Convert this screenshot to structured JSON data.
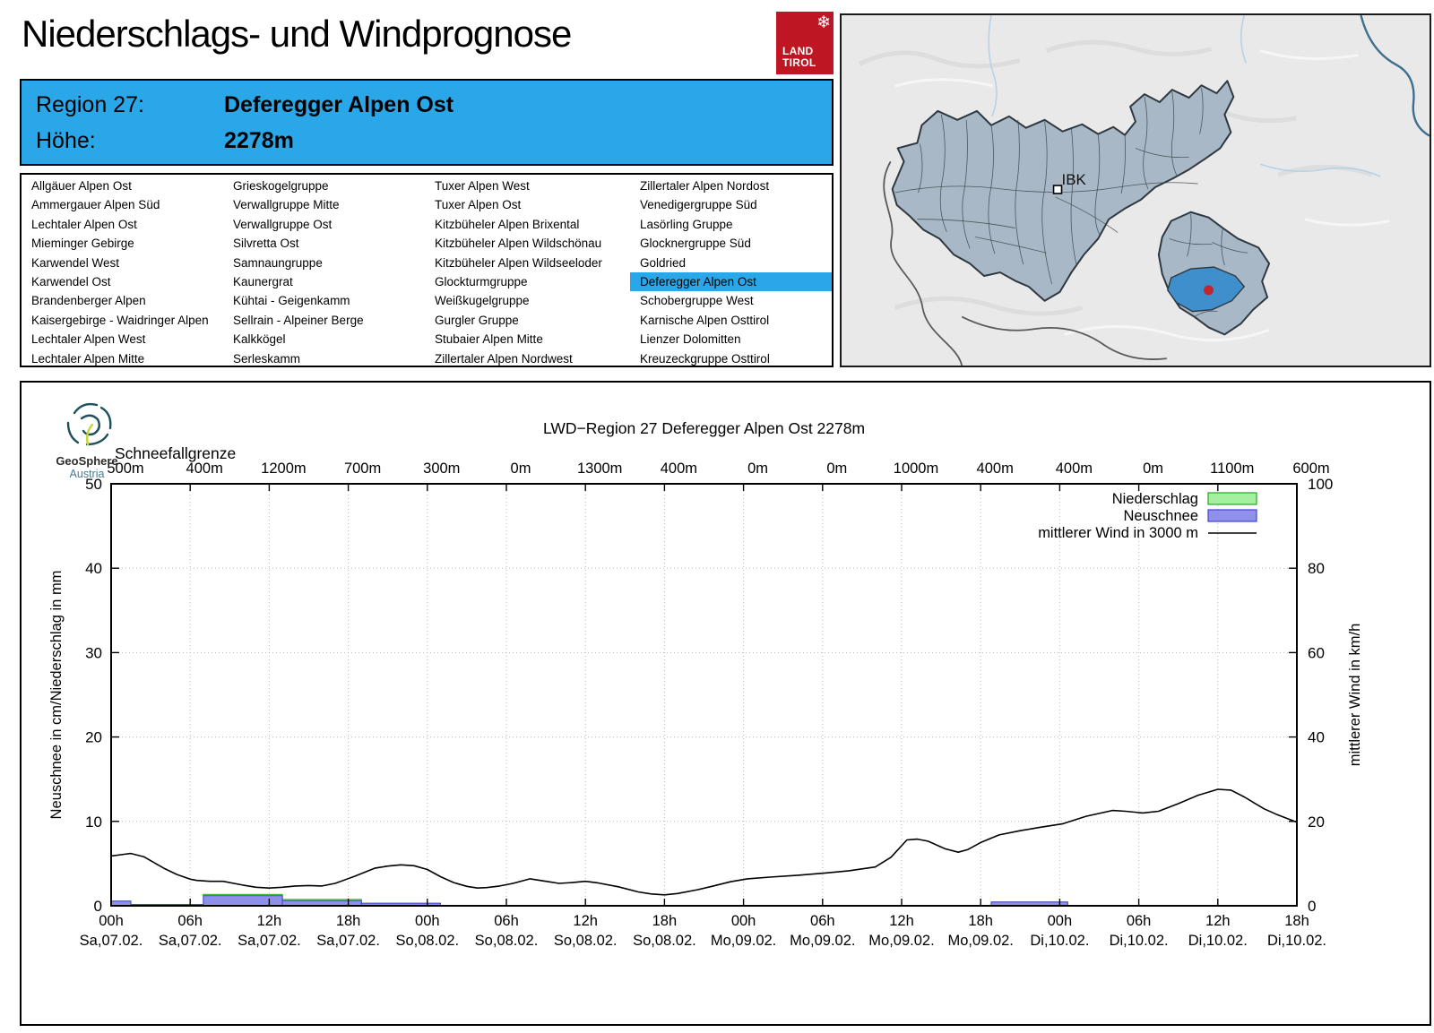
{
  "header": {
    "title": "Niederschlags- und Windprognose",
    "logo": {
      "snowflake": "❄",
      "text": "LAND\nTIROL"
    }
  },
  "region_info": {
    "region_label": "Region 27:",
    "region_name": "Deferegger Alpen Ost",
    "altitude_label": "Höhe:",
    "altitude": "2278m"
  },
  "region_list": {
    "selected": "Deferegger Alpen Ost",
    "columns": [
      [
        "Allgäuer Alpen Ost",
        "Ammergauer Alpen Süd",
        "Lechtaler Alpen Ost",
        "Mieminger Gebirge",
        "Karwendel West",
        "Karwendel Ost",
        "Brandenberger Alpen",
        "Kaisergebirge - Waidringer Alpen",
        "Lechtaler Alpen West",
        "Lechtaler Alpen Mitte"
      ],
      [
        "Grieskogelgruppe",
        "Verwallgruppe Mitte",
        "Verwallgruppe Ost",
        "Silvretta Ost",
        "Samnaungruppe",
        "Kaunergrat",
        "Kühtai - Geigenkamm",
        "Sellrain - Alpeiner Berge",
        "Kalkkögel",
        "Serleskamm"
      ],
      [
        "Tuxer Alpen West",
        "Tuxer Alpen Ost",
        "Kitzbüheler Alpen Brixental",
        "Kitzbüheler Alpen Wildschönau",
        "Kitzbüheler Alpen Wildseeloder",
        "Glockturmgruppe",
        "Weißkugelgruppe",
        "Gurgler Gruppe",
        "Stubaier Alpen Mitte",
        "Zillertaler Alpen Nordwest"
      ],
      [
        "Zillertaler Alpen Nordost",
        "Venedigergruppe Süd",
        "Lasörling Gruppe",
        "Glocknergruppe Süd",
        "Goldried",
        "Deferegger Alpen Ost",
        "Schobergruppe West",
        "Karnische Alpen Osttirol",
        "Lienzer Dolomitten",
        "Kreuzeckgruppe Osttirol"
      ]
    ]
  },
  "map": {
    "city_label": "IBK"
  },
  "colors": {
    "accent_blue": "#2aa7e8",
    "logo_red": "#be1622",
    "marker_red": "#c1272d",
    "region_fill": "#a9b8c6",
    "selected_region_fill": "#3e8fcb"
  },
  "geosphere": {
    "name": "GeoSphere",
    "country": "Austria"
  },
  "chart_data": {
    "type": "bar",
    "title": "LWD−Region 27 Deferegger Alpen Ost 2278m",
    "top_axis": {
      "label": "Schneefallgrenze",
      "values": [
        "500m",
        "400m",
        "1200m",
        "700m",
        "300m",
        "0m",
        "1300m",
        "400m",
        "0m",
        "0m",
        "1000m",
        "400m",
        "400m",
        "0m",
        "1100m",
        "600m"
      ]
    },
    "x_ticks": {
      "times": [
        "00h",
        "06h",
        "12h",
        "18h",
        "00h",
        "06h",
        "12h",
        "18h",
        "00h",
        "06h",
        "12h",
        "18h",
        "00h",
        "06h",
        "12h",
        "18h"
      ],
      "dates": [
        "Sa,07.02.",
        "Sa,07.02.",
        "Sa,07.02.",
        "Sa,07.02.",
        "So,08.02.",
        "So,08.02.",
        "So,08.02.",
        "So,08.02.",
        "Mo,09.02.",
        "Mo,09.02.",
        "Mo,09.02.",
        "Mo,09.02.",
        "Di,10.02.",
        "Di,10.02.",
        "Di,10.02.",
        "Di,10.02."
      ]
    },
    "hours_range": [
      0,
      90
    ],
    "y_left": {
      "label": "Neuschnee in cm/Niederschlag in mm",
      "ticks": [
        0,
        10,
        20,
        30,
        40,
        50
      ],
      "range": [
        0,
        50
      ]
    },
    "y_right": {
      "label": "mittlerer Wind in km/h",
      "ticks": [
        0,
        20,
        40,
        60,
        80,
        100
      ],
      "range": [
        0,
        100
      ]
    },
    "legend": [
      {
        "label": "Niederschlag",
        "type": "box",
        "fill": "#a5f0a0",
        "stroke": "#22a822"
      },
      {
        "label": "Neuschnee",
        "type": "box",
        "fill": "#8f8fec",
        "stroke": "#4444d4"
      },
      {
        "label": "mittlerer Wind in 3000 m",
        "type": "line",
        "stroke": "#000000"
      }
    ],
    "niederschlag_mm_segments": [
      [
        0,
        1.5,
        0.55
      ],
      [
        1.5,
        7,
        0.15
      ],
      [
        7,
        13,
        1.35
      ],
      [
        13,
        19,
        0.75
      ],
      [
        19,
        25,
        0.3
      ],
      [
        66.8,
        72.6,
        0.45
      ]
    ],
    "neuschnee_cm_segments": [
      [
        0,
        1.5,
        0.55
      ],
      [
        1.5,
        7,
        0.15
      ],
      [
        7,
        13,
        1.2
      ],
      [
        13,
        19,
        0.6
      ],
      [
        19,
        25,
        0.3
      ],
      [
        66.8,
        72.6,
        0.45
      ]
    ],
    "wind_kmh": [
      [
        0,
        11.8
      ],
      [
        1,
        12.2
      ],
      [
        1.5,
        12.4
      ],
      [
        2.5,
        11.6
      ],
      [
        4,
        8.9
      ],
      [
        5,
        7.4
      ],
      [
        6,
        6.3
      ],
      [
        6.5,
        6.0
      ],
      [
        7.5,
        5.8
      ],
      [
        8.5,
        5.8
      ],
      [
        10,
        4.9
      ],
      [
        11,
        4.4
      ],
      [
        12,
        4.2
      ],
      [
        13,
        4.4
      ],
      [
        14,
        4.7
      ],
      [
        15,
        4.8
      ],
      [
        16,
        4.7
      ],
      [
        17,
        5.3
      ],
      [
        18.5,
        7.0
      ],
      [
        20,
        8.9
      ],
      [
        21,
        9.4
      ],
      [
        22,
        9.7
      ],
      [
        23,
        9.5
      ],
      [
        24,
        8.6
      ],
      [
        25,
        6.9
      ],
      [
        26,
        5.5
      ],
      [
        27,
        4.6
      ],
      [
        27.8,
        4.2
      ],
      [
        28.5,
        4.3
      ],
      [
        29.5,
        4.7
      ],
      [
        30.5,
        5.3
      ],
      [
        31.8,
        6.4
      ],
      [
        33,
        5.8
      ],
      [
        34,
        5.3
      ],
      [
        35,
        5.5
      ],
      [
        36,
        5.8
      ],
      [
        37,
        5.4
      ],
      [
        38.5,
        4.5
      ],
      [
        40,
        3.3
      ],
      [
        41,
        2.8
      ],
      [
        42,
        2.6
      ],
      [
        43,
        2.9
      ],
      [
        44.5,
        3.8
      ],
      [
        45.6,
        4.6
      ],
      [
        47,
        5.7
      ],
      [
        48.3,
        6.4
      ],
      [
        50,
        6.8
      ],
      [
        52,
        7.2
      ],
      [
        54.3,
        7.8
      ],
      [
        56,
        8.3
      ],
      [
        58,
        9.2
      ],
      [
        59.2,
        11.5
      ],
      [
        60.4,
        15.6
      ],
      [
        61.2,
        15.8
      ],
      [
        62,
        15.3
      ],
      [
        63.3,
        13.5
      ],
      [
        64.3,
        12.7
      ],
      [
        65,
        13.3
      ],
      [
        66,
        15.0
      ],
      [
        67.4,
        16.8
      ],
      [
        69,
        17.8
      ],
      [
        70.5,
        18.6
      ],
      [
        72.2,
        19.4
      ],
      [
        74,
        21.2
      ],
      [
        76,
        22.6
      ],
      [
        77,
        22.4
      ],
      [
        78.3,
        22.0
      ],
      [
        79.5,
        22.4
      ],
      [
        81,
        24.2
      ],
      [
        82.5,
        26.2
      ],
      [
        84,
        27.6
      ],
      [
        85,
        27.4
      ],
      [
        86,
        25.8
      ],
      [
        87.5,
        23.0
      ],
      [
        88.5,
        21.6
      ],
      [
        90,
        19.8
      ]
    ]
  }
}
